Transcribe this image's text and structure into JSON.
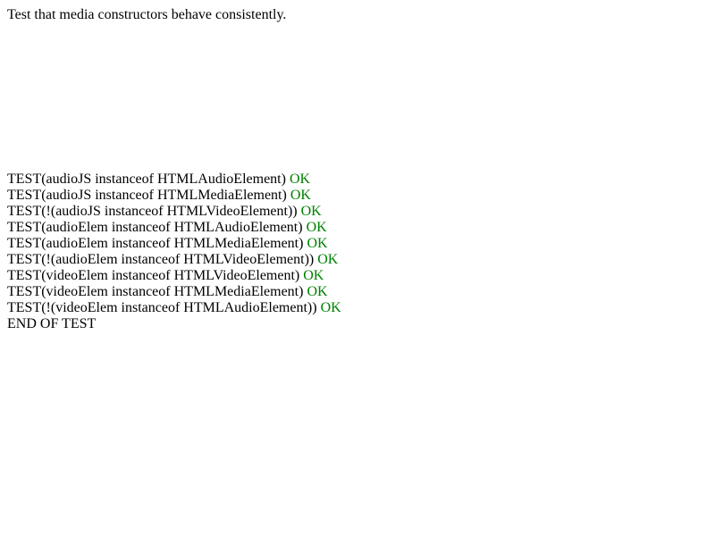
{
  "page": {
    "description": "Test that media constructors behave consistently.",
    "ok_color": "#008000",
    "results": [
      {
        "expression": "TEST(audioJS instanceof HTMLAudioElement)",
        "status": "OK"
      },
      {
        "expression": "TEST(audioJS instanceof HTMLMediaElement)",
        "status": "OK"
      },
      {
        "expression": "TEST(!(audioJS instanceof HTMLVideoElement))",
        "status": "OK"
      },
      {
        "expression": "TEST(audioElem instanceof HTMLAudioElement)",
        "status": "OK"
      },
      {
        "expression": "TEST(audioElem instanceof HTMLMediaElement)",
        "status": "OK"
      },
      {
        "expression": "TEST(!(audioElem instanceof HTMLVideoElement))",
        "status": "OK"
      },
      {
        "expression": "TEST(videoElem instanceof HTMLVideoElement)",
        "status": "OK"
      },
      {
        "expression": "TEST(videoElem instanceof HTMLMediaElement)",
        "status": "OK"
      },
      {
        "expression": "TEST(!(videoElem instanceof HTMLAudioElement))",
        "status": "OK"
      }
    ],
    "end_text": "END OF TEST"
  }
}
